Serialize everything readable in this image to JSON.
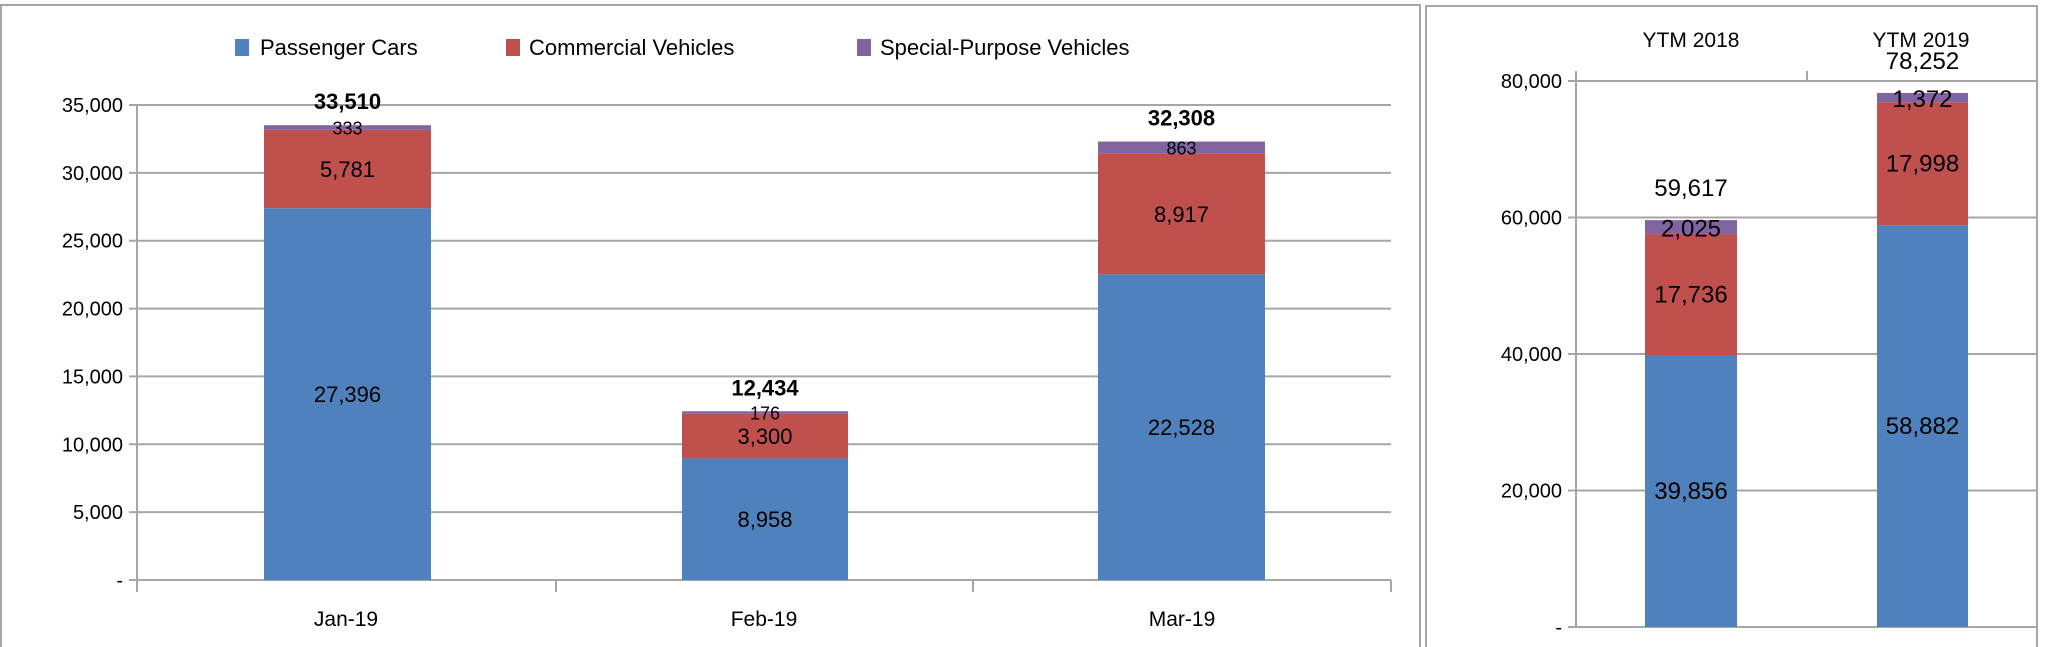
{
  "colors": {
    "passenger": "#4F81BD",
    "commercial": "#C0504D",
    "special": "#8064A2",
    "grid": "#A6A6A6",
    "border": "#A6A6A6"
  },
  "chart_data": [
    {
      "type": "bar",
      "stacked": true,
      "title": "",
      "xlabel": "",
      "ylabel": "",
      "categories": [
        "Jan-19",
        "Feb-19",
        "Mar-19"
      ],
      "series": [
        {
          "name": "Passenger Cars",
          "values": [
            27396,
            8958,
            22528
          ],
          "labels": [
            "27,396",
            "8,958",
            "22,528"
          ]
        },
        {
          "name": "Commercial Vehicles",
          "values": [
            5781,
            3300,
            8917
          ],
          "labels": [
            "5,781",
            "3,300",
            "8,917"
          ]
        },
        {
          "name": "Special-Purpose Vehicles",
          "values": [
            333,
            176,
            863
          ],
          "labels": [
            "333",
            "176",
            "863"
          ]
        }
      ],
      "totals": [
        33510,
        12434,
        32308
      ],
      "total_labels": [
        "33,510",
        "12,434",
        "32,308"
      ],
      "ylim": [
        0,
        35000
      ],
      "yticks": [
        0,
        5000,
        10000,
        15000,
        20000,
        25000,
        30000,
        35000
      ],
      "ytick_labels": [
        "-",
        "5,000",
        "10,000",
        "15,000",
        "20,000",
        "25,000",
        "30,000",
        "35,000"
      ],
      "grid": true,
      "legend": "top"
    },
    {
      "type": "bar",
      "stacked": true,
      "title": "",
      "categories": [
        "YTM 2018",
        "YTM 2019"
      ],
      "series": [
        {
          "name": "Passenger Cars",
          "values": [
            39856,
            58882
          ],
          "labels": [
            "39,856",
            "58,882"
          ]
        },
        {
          "name": "Commercial Vehicles",
          "values": [
            17736,
            17998
          ],
          "labels": [
            "17,736",
            "17,998"
          ]
        },
        {
          "name": "Special-Purpose Vehicles",
          "values": [
            2025,
            1372
          ],
          "labels": [
            "2,025",
            "1,372"
          ]
        }
      ],
      "totals": [
        59617,
        78252
      ],
      "total_labels": [
        "59,617",
        "78,252"
      ],
      "ylim": [
        0,
        80000
      ],
      "yticks": [
        0,
        20000,
        40000,
        60000,
        80000
      ],
      "ytick_labels": [
        "-",
        "20,000",
        "40,000",
        "60,000",
        "80,000"
      ],
      "grid": true,
      "category_axis": "top"
    }
  ]
}
